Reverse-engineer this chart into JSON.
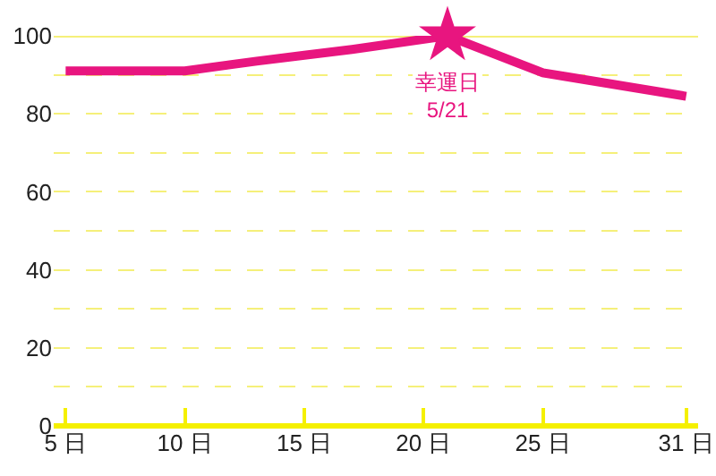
{
  "chart_data": {
    "type": "line",
    "x": [
      5,
      10,
      13,
      15,
      17,
      21,
      25,
      26,
      31
    ],
    "series": [
      {
        "color": "#e8157f",
        "marker": "none",
        "values": [
          91,
          91,
          93.5,
          95,
          96.5,
          100,
          90.5,
          89.5,
          84.5
        ]
      },
      {
        "type": "scatter",
        "color": "#e8157f",
        "marker": "star",
        "x": [
          21
        ],
        "values": [
          100
        ]
      }
    ],
    "xlim": [
      4.5,
      31.5
    ],
    "xticks": [
      {
        "value": 5,
        "label": "5 日"
      },
      {
        "value": 10,
        "label": "10 日"
      },
      {
        "value": 15,
        "label": "15 日"
      },
      {
        "value": 20,
        "label": "20 日"
      },
      {
        "value": 25,
        "label": "25 日"
      },
      {
        "value": 31,
        "label": "31 日"
      }
    ],
    "ylim": [
      0,
      100
    ],
    "yticks": [
      0,
      {
        "value": 10,
        "label": null
      },
      20,
      {
        "value": 30,
        "label": null
      },
      40,
      {
        "value": 50,
        "label": null
      },
      60,
      {
        "value": 70,
        "label": null
      },
      80,
      {
        "value": 90,
        "label": null
      },
      100
    ],
    "grid": "y",
    "line_style": "solid",
    "ref_lines": [
      {
        "axis": "y",
        "value": 100,
        "color": "#f5f07a"
      }
    ],
    "annotations": [
      {
        "text": "幸運日\n5/21",
        "x": 21,
        "y": 100
      }
    ]
  }
}
